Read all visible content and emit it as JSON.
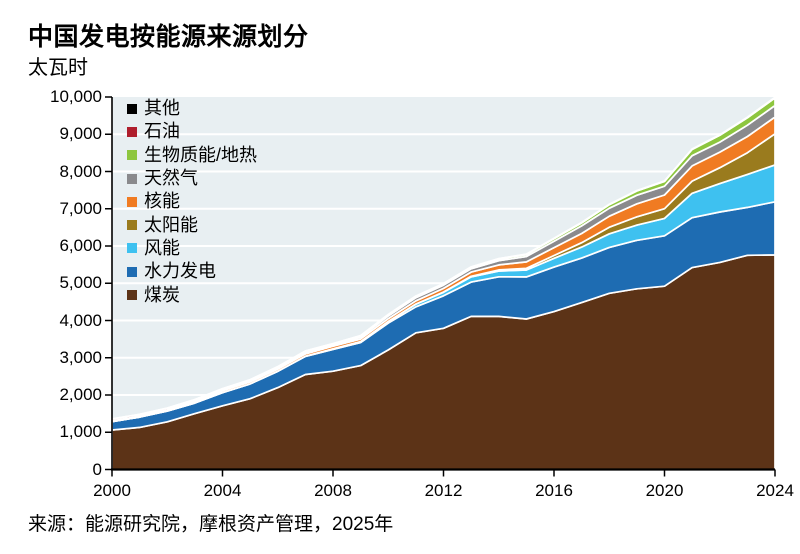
{
  "header": {
    "title": "中国发电按能源来源划分",
    "subtitle": "太瓦时"
  },
  "footer": {
    "source": "来源：能源研究院，摩根资产管理，2025年"
  },
  "colors": {
    "plot_bg": "#E8EFF2",
    "grid": "#FFFFFF",
    "axis": "#000000",
    "area_outline": "#FFFFFF"
  },
  "chart_data": {
    "type": "area",
    "stacked": true,
    "title": "中国发电按能源来源划分",
    "unit_label": "太瓦时",
    "grid": true,
    "legend_position": "top-left",
    "xlim": [
      2000,
      2024
    ],
    "ylim": [
      0,
      10000
    ],
    "x": [
      2000,
      2001,
      2002,
      2003,
      2004,
      2005,
      2006,
      2007,
      2008,
      2009,
      2010,
      2011,
      2012,
      2013,
      2014,
      2015,
      2016,
      2017,
      2018,
      2019,
      2020,
      2021,
      2022,
      2023,
      2024
    ],
    "x_ticks": [
      2000,
      2004,
      2008,
      2012,
      2016,
      2020,
      2024
    ],
    "x_tick_labels": [
      "2000",
      "2004",
      "2008",
      "2012",
      "2016",
      "2020",
      "2024"
    ],
    "y_ticks": [
      0,
      1000,
      2000,
      3000,
      4000,
      5000,
      6000,
      7000,
      8000,
      9000,
      10000
    ],
    "y_tick_labels": [
      "0",
      "1,000",
      "2,000",
      "3,000",
      "4,000",
      "5,000",
      "6,000",
      "7,000",
      "8,000",
      "9,000",
      "10,000"
    ],
    "legend_order_top_to_bottom": [
      "其他",
      "石油",
      "生物质能/地热",
      "天然气",
      "核能",
      "太阳能",
      "风能",
      "水力发电",
      "煤炭"
    ],
    "series": [
      {
        "key": "coal",
        "label": "煤炭",
        "color": "#5C3317",
        "values": [
          1060,
          1130,
          1280,
          1500,
          1710,
          1900,
          2200,
          2550,
          2640,
          2790,
          3210,
          3670,
          3790,
          4110,
          4110,
          4040,
          4240,
          4480,
          4730,
          4850,
          4920,
          5420,
          5560,
          5750,
          5760
        ]
      },
      {
        "key": "hydro",
        "label": "水力发电",
        "color": "#1E6CB2",
        "values": [
          222,
          277,
          288,
          284,
          353,
          397,
          436,
          485,
          585,
          616,
          722,
          699,
          872,
          920,
          1064,
          1130,
          1193,
          1195,
          1232,
          1304,
          1355,
          1340,
          1352,
          1285,
          1426
        ]
      },
      {
        "key": "wind",
        "label": "风能",
        "color": "#3EC1F0",
        "values": [
          1,
          1,
          1,
          1,
          1,
          2,
          4,
          6,
          15,
          27,
          45,
          70,
          96,
          141,
          156,
          186,
          237,
          295,
          366,
          406,
          466,
          656,
          763,
          886,
          992
        ]
      },
      {
        "key": "solar",
        "label": "太阳能",
        "color": "#9A7B1E",
        "values": [
          0,
          0,
          0,
          0,
          0,
          0,
          0,
          1,
          1,
          1,
          1,
          3,
          6,
          16,
          29,
          45,
          75,
          118,
          177,
          224,
          261,
          327,
          428,
          584,
          834
        ]
      },
      {
        "key": "nuclear",
        "label": "核能",
        "color": "#F07B22",
        "values": [
          17,
          18,
          25,
          43,
          51,
          53,
          55,
          62,
          68,
          70,
          74,
          86,
          97,
          111,
          133,
          171,
          213,
          248,
          295,
          349,
          366,
          408,
          418,
          435,
          451
        ]
      },
      {
        "key": "gas",
        "label": "天然气",
        "color": "#8A8A8D",
        "values": [
          6,
          7,
          7,
          8,
          12,
          17,
          26,
          37,
          31,
          51,
          70,
          84,
          86,
          90,
          114,
          145,
          170,
          203,
          215,
          232,
          237,
          273,
          268,
          303,
          308
        ]
      },
      {
        "key": "biomass",
        "label": "生物质能/地热",
        "color": "#8DC63F",
        "values": [
          2,
          3,
          3,
          3,
          3,
          5,
          8,
          11,
          14,
          20,
          25,
          31,
          34,
          38,
          44,
          53,
          65,
          79,
          93,
          111,
          128,
          166,
          182,
          198,
          205
        ]
      },
      {
        "key": "oil",
        "label": "石油",
        "color": "#AF1E2D",
        "values": [
          47,
          45,
          43,
          40,
          38,
          35,
          32,
          28,
          24,
          17,
          14,
          12,
          10,
          9,
          9,
          9,
          9,
          9,
          9,
          8,
          8,
          8,
          8,
          8,
          8
        ]
      },
      {
        "key": "other",
        "label": "其他",
        "color": "#000000",
        "values": [
          1,
          1,
          1,
          1,
          1,
          1,
          1,
          2,
          2,
          2,
          2,
          3,
          3,
          3,
          4,
          4,
          4,
          5,
          5,
          6,
          6,
          7,
          7,
          8,
          8
        ]
      }
    ]
  }
}
